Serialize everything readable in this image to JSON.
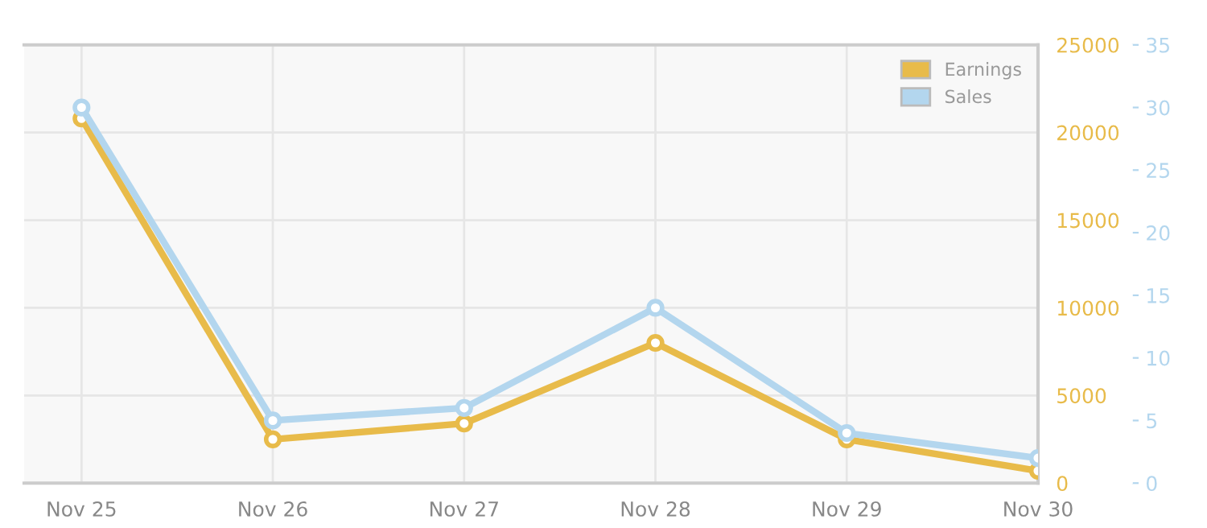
{
  "chart_data": {
    "type": "line",
    "categories": [
      "Nov 25",
      "Nov 26",
      "Nov 27",
      "Nov 28",
      "Nov 29",
      "Nov 30"
    ],
    "series": [
      {
        "name": "Earnings",
        "color": "#e8bb4a",
        "values": [
          20800,
          2500,
          3400,
          8000,
          2500,
          700
        ]
      },
      {
        "name": "Sales",
        "color": "#b3d6ee",
        "axis": "y2",
        "values": [
          30,
          5,
          6,
          14,
          4,
          2
        ]
      }
    ],
    "ylim": [
      0,
      25000
    ],
    "yticks": [
      0,
      5000,
      10000,
      15000,
      20000,
      25000
    ],
    "y2lim": [
      0,
      35
    ],
    "y2ticks": [
      0,
      5,
      10,
      15,
      20,
      25,
      30,
      35
    ],
    "grid": true,
    "legend": "top right",
    "marker": "circle",
    "line_style": "solid"
  }
}
